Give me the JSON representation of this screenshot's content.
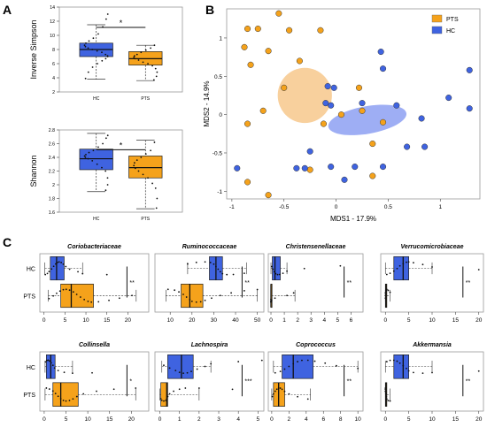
{
  "colors": {
    "hc": "#3f63e0",
    "pts": "#f5a21b",
    "hc_light": "#7d93f0",
    "pts_light": "#f5c07c",
    "dot": "#111111"
  },
  "panel_labels": [
    "A",
    "B",
    "C"
  ],
  "chart_data": [
    {
      "id": "A1",
      "type": "box",
      "ylabel": "Inverse Simpson",
      "categories": [
        "HC",
        "PTS"
      ],
      "ylim": [
        2,
        14
      ],
      "yticks": [
        2,
        4,
        6,
        8,
        10,
        12,
        14
      ],
      "boxes": [
        {
          "group": "HC",
          "min": 3.8,
          "q1": 7.0,
          "median": 8.0,
          "q3": 8.9,
          "max": 11.5
        },
        {
          "group": "PTS",
          "min": 3.6,
          "q1": 5.8,
          "median": 6.7,
          "q3": 7.7,
          "max": 8.6
        }
      ],
      "points": [
        {
          "group": "HC",
          "values": [
            13,
            12.3,
            11.2,
            10.2,
            9.6,
            9.2,
            8.9,
            8.6,
            8.4,
            8.2,
            8.0,
            7.8,
            7.6,
            7.3,
            7.1,
            7.0,
            6.7,
            6.4,
            6.0,
            5.5,
            4.8,
            3.9
          ]
        },
        {
          "group": "PTS",
          "values": [
            8.6,
            8.2,
            7.9,
            7.6,
            7.3,
            7.1,
            6.9,
            6.7,
            6.5,
            6.2,
            6.0,
            5.7,
            5.3,
            4.8,
            4.2,
            3.7
          ]
        }
      ],
      "significance": "*"
    },
    {
      "id": "A2",
      "type": "box",
      "ylabel": "Shannon",
      "categories": [
        "HC",
        "PTS"
      ],
      "ylim": [
        1.6,
        2.8
      ],
      "yticks": [
        1.6,
        1.8,
        2.0,
        2.2,
        2.4,
        2.6,
        2.8
      ],
      "boxes": [
        {
          "group": "HC",
          "min": 1.9,
          "q1": 2.22,
          "median": 2.38,
          "q3": 2.52,
          "max": 2.75
        },
        {
          "group": "PTS",
          "min": 1.65,
          "q1": 2.1,
          "median": 2.25,
          "q3": 2.42,
          "max": 2.65
        }
      ],
      "points": [
        {
          "group": "HC",
          "values": [
            2.72,
            2.68,
            2.6,
            2.55,
            2.5,
            2.47,
            2.44,
            2.42,
            2.4,
            2.38,
            2.35,
            2.3,
            2.25,
            2.2,
            2.1,
            2.0,
            1.92
          ]
        },
        {
          "group": "PTS",
          "values": [
            2.62,
            2.5,
            2.45,
            2.4,
            2.36,
            2.32,
            2.28,
            2.24,
            2.2,
            2.15,
            2.1,
            2.02,
            1.95,
            1.8,
            1.66
          ]
        }
      ],
      "significance": "*"
    },
    {
      "id": "B",
      "type": "scatter",
      "xlabel": "MDS1 - 17.9%",
      "ylabel": "MDS2 - 14.9%",
      "xlim": [
        -1.05,
        1.38
      ],
      "ylim": [
        -1.1,
        1.38
      ],
      "xticks": [
        -1.0,
        -0.5,
        0.0,
        0.5,
        1.0
      ],
      "yticks": [
        -1.0,
        -0.5,
        0.0,
        0.5,
        1.0
      ],
      "legend": [
        "PTS",
        "HC"
      ],
      "legend_position": "top-right",
      "series": [
        {
          "name": "PTS",
          "points": [
            [
              -0.55,
              1.32
            ],
            [
              -0.85,
              1.12
            ],
            [
              -0.75,
              1.12
            ],
            [
              -0.45,
              1.1
            ],
            [
              -0.15,
              1.1
            ],
            [
              -0.88,
              0.88
            ],
            [
              -0.65,
              0.83
            ],
            [
              -0.82,
              0.65
            ],
            [
              -0.35,
              0.7
            ],
            [
              -0.5,
              0.35
            ],
            [
              0.22,
              0.35
            ],
            [
              -0.7,
              0.05
            ],
            [
              0.05,
              0.0
            ],
            [
              0.25,
              0.05
            ],
            [
              -0.85,
              -0.12
            ],
            [
              -0.12,
              -0.12
            ],
            [
              0.45,
              -0.1
            ],
            [
              0.35,
              -0.38
            ],
            [
              -0.25,
              -0.72
            ],
            [
              0.35,
              -0.8
            ],
            [
              -0.85,
              -0.88
            ],
            [
              -0.65,
              -1.05
            ]
          ]
        },
        {
          "name": "HC",
          "points": [
            [
              0.43,
              0.82
            ],
            [
              0.45,
              0.6
            ],
            [
              -0.08,
              0.37
            ],
            [
              -0.02,
              0.35
            ],
            [
              1.28,
              0.58
            ],
            [
              -0.1,
              0.15
            ],
            [
              -0.05,
              0.12
            ],
            [
              0.25,
              0.15
            ],
            [
              0.58,
              0.12
            ],
            [
              1.08,
              0.22
            ],
            [
              1.28,
              0.08
            ],
            [
              0.82,
              -0.05
            ],
            [
              -0.25,
              -0.48
            ],
            [
              0.68,
              -0.42
            ],
            [
              0.85,
              -0.42
            ],
            [
              -0.95,
              -0.7
            ],
            [
              -0.38,
              -0.7
            ],
            [
              -0.3,
              -0.7
            ],
            [
              -0.05,
              -0.68
            ],
            [
              0.18,
              -0.68
            ],
            [
              0.45,
              -0.68
            ],
            [
              0.08,
              -0.85
            ]
          ]
        }
      ],
      "ellipses": [
        {
          "group": "PTS",
          "cx": -0.3,
          "cy": 0.25,
          "rx": 0.26,
          "ry": 0.36,
          "angle": 0
        },
        {
          "group": "HC",
          "cx": 0.3,
          "cy": -0.07,
          "rx": 0.38,
          "ry": 0.18,
          "angle": -10
        }
      ]
    },
    {
      "id": "C1",
      "type": "box",
      "orientation": "horizontal",
      "title": "Coriobacteriaceae",
      "categories": [
        "HC",
        "PTS"
      ],
      "xlim": [
        -1,
        25
      ],
      "xticks": [
        0,
        5,
        10,
        15,
        20
      ],
      "boxes": [
        {
          "group": "HC",
          "min": 0.2,
          "q1": 1.5,
          "median": 3,
          "q3": 4.8,
          "max": 9.2
        },
        {
          "group": "PTS",
          "min": 1,
          "q1": 4,
          "median": 6.5,
          "q3": 11.8,
          "max": 22
        }
      ],
      "points": [
        {
          "group": "HC",
          "values": [
            0.3,
            0.8,
            1.2,
            1.8,
            2.3,
            2.8,
            3.2,
            3.6,
            4.1,
            4.6,
            5.2,
            6.1,
            8.1,
            9.2,
            15
          ]
        },
        {
          "group": "PTS",
          "values": [
            1.2,
            2.2,
            3,
            3.8,
            4.6,
            5.3,
            6.1,
            7,
            7.8,
            8.7,
            9.6,
            10.5,
            11.3,
            13,
            15.5,
            18,
            21
          ]
        }
      ],
      "significance": "**"
    },
    {
      "id": "C2",
      "type": "box",
      "orientation": "horizontal",
      "title": "Ruminococcaceae",
      "categories": [
        "HC",
        "PTS"
      ],
      "xlim": [
        3,
        53
      ],
      "xticks": [
        10,
        20,
        30,
        40,
        50
      ],
      "boxes": [
        {
          "group": "HC",
          "min": 18,
          "q1": 28,
          "median": 31,
          "q3": 34,
          "max": 45
        },
        {
          "group": "PTS",
          "min": 8,
          "q1": 15,
          "median": 19,
          "q3": 25,
          "max": 50
        }
      ],
      "points": [
        {
          "group": "HC",
          "values": [
            18,
            22,
            26,
            28.5,
            30,
            31,
            32,
            33,
            34,
            36,
            39,
            44
          ]
        },
        {
          "group": "PTS",
          "values": [
            9,
            12,
            14,
            16,
            17.5,
            19,
            20,
            22,
            24,
            26,
            29,
            33,
            38,
            44,
            50
          ]
        }
      ],
      "significance": "**"
    },
    {
      "id": "C3",
      "type": "box",
      "orientation": "horizontal",
      "title": "Christensenellaceae",
      "categories": [
        "HC",
        "PTS"
      ],
      "xlim": [
        -0.2,
        6.9
      ],
      "xticks": [
        0,
        1,
        2,
        3,
        4,
        5,
        6
      ],
      "boxes": [
        {
          "group": "HC",
          "min": 0,
          "q1": 0.1,
          "median": 0.3,
          "q3": 0.7,
          "max": 1.2
        },
        {
          "group": "PTS",
          "min": 0,
          "q1": 0,
          "median": 0,
          "q3": 0.05,
          "max": 1.8
        }
      ],
      "points": [
        {
          "group": "HC",
          "values": [
            0.05,
            0.15,
            0.25,
            0.35,
            0.5,
            0.65,
            0.9,
            1.2,
            2.5,
            5.2
          ]
        },
        {
          "group": "PTS",
          "values": [
            0,
            0,
            0,
            0.02,
            0.05,
            0.3,
            1.2,
            1.7
          ]
        }
      ],
      "significance": "**"
    },
    {
      "id": "C4",
      "type": "box",
      "orientation": "horizontal",
      "title": "Verrucomicrobiaceae",
      "categories": [
        "HC",
        "PTS"
      ],
      "xlim": [
        -1,
        21
      ],
      "xticks": [
        0,
        5,
        10,
        15,
        20
      ],
      "boxes": [
        {
          "group": "HC",
          "min": 0,
          "q1": 1.8,
          "median": 3.8,
          "q3": 5,
          "max": 10
        },
        {
          "group": "PTS",
          "min": 0,
          "q1": 0,
          "median": 0.1,
          "q3": 0.3,
          "max": 1
        }
      ],
      "points": [
        {
          "group": "HC",
          "values": [
            0.3,
            1,
            1.8,
            2.5,
            3.1,
            3.8,
            4.5,
            5,
            6,
            8,
            10,
            20
          ]
        },
        {
          "group": "PTS",
          "values": [
            0,
            0,
            0,
            0.1,
            0.2,
            0.3,
            0.6,
            1
          ]
        }
      ],
      "significance": "**"
    },
    {
      "id": "C5",
      "type": "box",
      "orientation": "horizontal",
      "title": "Collinsella",
      "categories": [
        "HC",
        "PTS"
      ],
      "xlim": [
        -1,
        24
      ],
      "xticks": [
        0,
        5,
        10,
        15,
        20
      ],
      "boxes": [
        {
          "group": "HC",
          "min": 0.2,
          "q1": 0.5,
          "median": 1.5,
          "q3": 2.5,
          "max": 6.5
        },
        {
          "group": "PTS",
          "min": 0.2,
          "q1": 2,
          "median": 3.8,
          "q3": 7.8,
          "max": 21
        }
      ],
      "points": [
        {
          "group": "HC",
          "values": [
            0.3,
            0.6,
            0.9,
            1.2,
            1.6,
            2,
            2.4,
            3.2,
            4.6,
            6.5,
            11
          ]
        },
        {
          "group": "PTS",
          "values": [
            0.5,
            1.2,
            2,
            2.6,
            3.2,
            3.8,
            4.4,
            5,
            5.8,
            6.6,
            7.5,
            9,
            12,
            16,
            21
          ]
        }
      ],
      "significance": "*"
    },
    {
      "id": "C6",
      "type": "box",
      "orientation": "horizontal",
      "title": "Lachnospira",
      "categories": [
        "HC",
        "PTS"
      ],
      "xlim": [
        -0.25,
        5.3
      ],
      "xticks": [
        0,
        1,
        2,
        3,
        4,
        5
      ],
      "boxes": [
        {
          "group": "HC",
          "min": 0.1,
          "q1": 0.4,
          "median": 1.1,
          "q3": 1.7,
          "max": 2.6
        },
        {
          "group": "PTS",
          "min": 0,
          "q1": 0.05,
          "median": 0.35,
          "q3": 0.4,
          "max": 2
        }
      ],
      "points": [
        {
          "group": "HC",
          "values": [
            0.2,
            0.5,
            0.8,
            1,
            1.2,
            1.4,
            1.6,
            1.9,
            2.3,
            2.6,
            4,
            5.2
          ]
        },
        {
          "group": "PTS",
          "values": [
            0.05,
            0.1,
            0.2,
            0.3,
            0.35,
            0.4,
            0.5,
            0.7,
            1,
            1.3,
            2,
            3.7
          ]
        }
      ],
      "significance": "***"
    },
    {
      "id": "C7",
      "type": "box",
      "orientation": "horizontal",
      "title": "Coprococcus",
      "categories": [
        "HC",
        "PTS"
      ],
      "xlim": [
        -0.4,
        10.6
      ],
      "xticks": [
        0,
        2,
        4,
        6,
        8,
        10
      ],
      "boxes": [
        {
          "group": "HC",
          "min": 0.2,
          "q1": 1.2,
          "median": 2.5,
          "q3": 4.8,
          "max": 10
        },
        {
          "group": "PTS",
          "min": 0,
          "q1": 0.2,
          "median": 0.8,
          "q3": 1.5,
          "max": 4.5
        }
      ],
      "points": [
        {
          "group": "HC",
          "values": [
            0.4,
            1,
            1.5,
            2,
            2.5,
            3,
            3.5,
            4.2,
            5,
            6.2,
            7.5,
            10
          ]
        },
        {
          "group": "PTS",
          "values": [
            0.05,
            0.2,
            0.4,
            0.6,
            0.8,
            1,
            1.2,
            1.5,
            2,
            3,
            4.2
          ]
        }
      ],
      "significance": "**"
    },
    {
      "id": "C8",
      "type": "box",
      "orientation": "horizontal",
      "title": "Akkermansia",
      "categories": [
        "HC",
        "PTS"
      ],
      "xlim": [
        -1,
        21
      ],
      "xticks": [
        0,
        5,
        10,
        15,
        20
      ],
      "boxes": [
        {
          "group": "HC",
          "min": 0,
          "q1": 1.8,
          "median": 3.8,
          "q3": 5,
          "max": 10
        },
        {
          "group": "PTS",
          "min": 0,
          "q1": 0,
          "median": 0.1,
          "q3": 0.3,
          "max": 1
        }
      ],
      "points": [
        {
          "group": "HC",
          "values": [
            0.3,
            1,
            1.8,
            2.5,
            3.1,
            3.8,
            4.5,
            5,
            6,
            8,
            10,
            20
          ]
        },
        {
          "group": "PTS",
          "values": [
            0,
            0,
            0,
            0.1,
            0.2,
            0.3,
            0.6,
            1
          ]
        }
      ],
      "significance": "**"
    }
  ]
}
